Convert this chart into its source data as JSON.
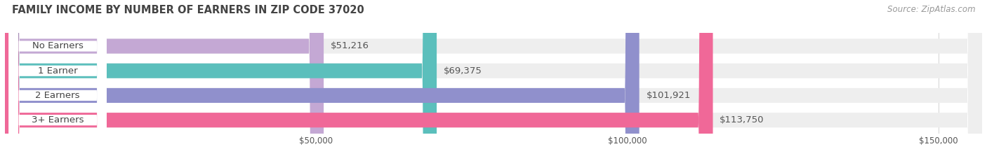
{
  "title": "FAMILY INCOME BY NUMBER OF EARNERS IN ZIP CODE 37020",
  "source": "Source: ZipAtlas.com",
  "categories": [
    "No Earners",
    "1 Earner",
    "2 Earners",
    "3+ Earners"
  ],
  "values": [
    51216,
    69375,
    101921,
    113750
  ],
  "labels": [
    "$51,216",
    "$69,375",
    "$101,921",
    "$113,750"
  ],
  "bar_colors": [
    "#c4a8d4",
    "#5bbfbc",
    "#9090cc",
    "#f06898"
  ],
  "bar_bg_color": "#eeeeee",
  "background_color": "#ffffff",
  "xlim_min": 0,
  "xlim_max": 157000,
  "xticks": [
    50000,
    100000,
    150000
  ],
  "xtick_labels": [
    "$50,000",
    "$100,000",
    "$150,000"
  ],
  "label_text_color": "#555555",
  "title_color": "#444444",
  "source_color": "#999999",
  "bar_height": 0.6,
  "label_fontsize": 9.5,
  "title_fontsize": 10.5,
  "source_fontsize": 8.5,
  "tick_fontsize": 8.5,
  "pill_text_color": "#444444",
  "value_label_color": "#555555"
}
